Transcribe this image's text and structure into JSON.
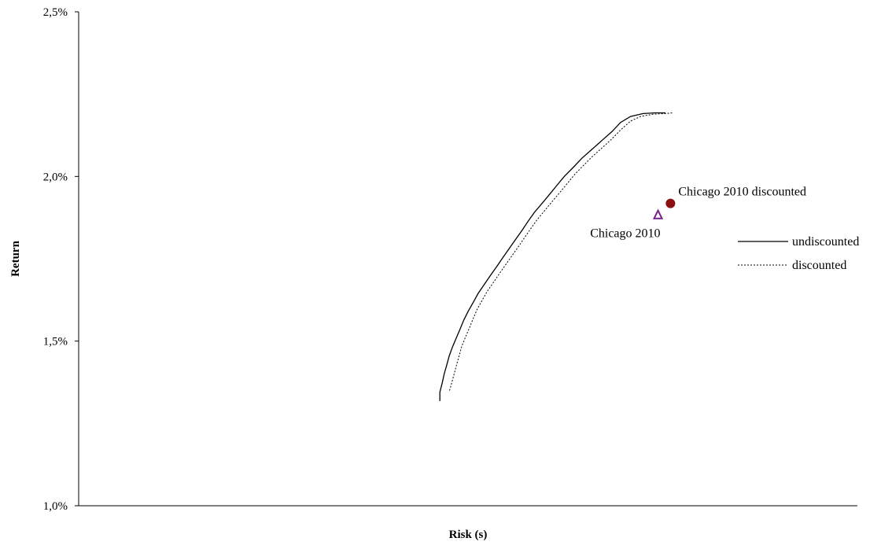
{
  "chart_data": {
    "type": "line",
    "title": "",
    "xlabel": "Risk (s)",
    "ylabel": "Return",
    "ylim": [
      0.01,
      0.025
    ],
    "yticks": [
      {
        "value": 0.01,
        "label": "1,0%"
      },
      {
        "value": 0.015,
        "label": "1,5%"
      },
      {
        "value": 0.02,
        "label": "2,0%"
      },
      {
        "value": 0.025,
        "label": "2,5%"
      }
    ],
    "grid": false,
    "legend_position": "right",
    "series": [
      {
        "name": "undiscounted",
        "style": "solid",
        "color": "#000000",
        "points": [
          [
            0.2583,
            0.01318
          ],
          [
            0.2583,
            0.01345
          ],
          [
            0.26,
            0.01373
          ],
          [
            0.2614,
            0.014
          ],
          [
            0.2632,
            0.01427
          ],
          [
            0.265,
            0.01455
          ],
          [
            0.2673,
            0.01482
          ],
          [
            0.27,
            0.01509
          ],
          [
            0.2727,
            0.01536
          ],
          [
            0.2754,
            0.01564
          ],
          [
            0.2786,
            0.01591
          ],
          [
            0.2822,
            0.01618
          ],
          [
            0.2857,
            0.01645
          ],
          [
            0.2902,
            0.01673
          ],
          [
            0.2946,
            0.017
          ],
          [
            0.2991,
            0.01727
          ],
          [
            0.3036,
            0.01755
          ],
          [
            0.308,
            0.01782
          ],
          [
            0.3125,
            0.01809
          ],
          [
            0.317,
            0.01836
          ],
          [
            0.3214,
            0.01864
          ],
          [
            0.3259,
            0.01891
          ],
          [
            0.3313,
            0.01918
          ],
          [
            0.3366,
            0.01945
          ],
          [
            0.342,
            0.01973
          ],
          [
            0.3473,
            0.02
          ],
          [
            0.3536,
            0.02027
          ],
          [
            0.3598,
            0.02055
          ],
          [
            0.367,
            0.02082
          ],
          [
            0.3741,
            0.02109
          ],
          [
            0.3813,
            0.02136
          ],
          [
            0.3875,
            0.02164
          ],
          [
            0.3946,
            0.02182
          ],
          [
            0.4036,
            0.02191
          ],
          [
            0.4125,
            0.02193
          ],
          [
            0.4196,
            0.02193
          ]
        ]
      },
      {
        "name": "discounted",
        "style": "dotted",
        "color": "#000000",
        "points": [
          [
            0.2652,
            0.0135
          ],
          [
            0.267,
            0.01377
          ],
          [
            0.2688,
            0.01405
          ],
          [
            0.2705,
            0.01432
          ],
          [
            0.2723,
            0.01459
          ],
          [
            0.2741,
            0.01486
          ],
          [
            0.2768,
            0.01514
          ],
          [
            0.2795,
            0.01541
          ],
          [
            0.2821,
            0.01568
          ],
          [
            0.2848,
            0.01595
          ],
          [
            0.2884,
            0.01623
          ],
          [
            0.292,
            0.0165
          ],
          [
            0.2964,
            0.01677
          ],
          [
            0.3009,
            0.01705
          ],
          [
            0.3054,
            0.01732
          ],
          [
            0.3098,
            0.01759
          ],
          [
            0.3143,
            0.01786
          ],
          [
            0.3188,
            0.01814
          ],
          [
            0.3232,
            0.01841
          ],
          [
            0.3277,
            0.01868
          ],
          [
            0.333,
            0.01895
          ],
          [
            0.3384,
            0.01923
          ],
          [
            0.3438,
            0.0195
          ],
          [
            0.3491,
            0.01977
          ],
          [
            0.3545,
            0.02005
          ],
          [
            0.3607,
            0.02032
          ],
          [
            0.367,
            0.02059
          ],
          [
            0.3741,
            0.02086
          ],
          [
            0.3813,
            0.02114
          ],
          [
            0.3875,
            0.02141
          ],
          [
            0.3946,
            0.02168
          ],
          [
            0.4018,
            0.02182
          ],
          [
            0.4107,
            0.02189
          ],
          [
            0.4196,
            0.02191
          ],
          [
            0.425,
            0.02193
          ]
        ]
      }
    ],
    "points": [
      {
        "label": "Chicago 2010",
        "x": 0.4143,
        "y": 0.01882,
        "marker": "triangle-open",
        "color": "#7b1f8c",
        "label_side": "left-below"
      },
      {
        "label": "Chicago 2010 discounted",
        "x": 0.4232,
        "y": 0.01918,
        "marker": "circle-filled",
        "color": "#8b0f0f",
        "label_side": "right-above"
      }
    ],
    "xlim": [
      0.0,
      0.5625
    ]
  }
}
